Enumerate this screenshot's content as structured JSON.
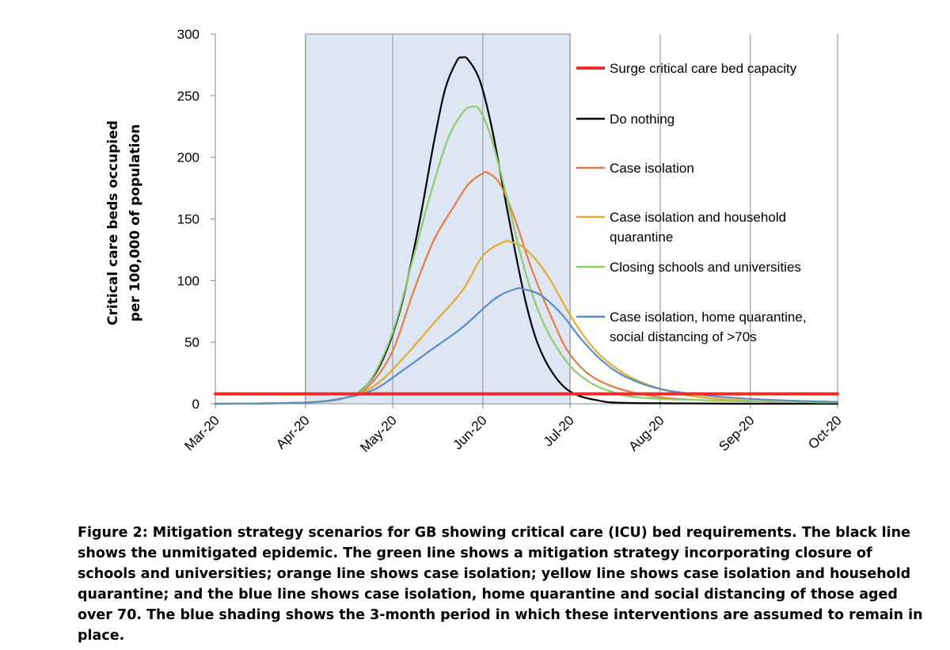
{
  "chart_data": {
    "type": "line",
    "ylabel": [
      "Critical care beds occupied",
      "per 100,000 of population"
    ],
    "ylim": [
      0,
      300
    ],
    "yticks": [
      0,
      50,
      100,
      150,
      200,
      250,
      300
    ],
    "xlim": [
      "2020-03-01",
      "2020-10-01"
    ],
    "xticks": [
      {
        "label": "Mar-20",
        "date": "2020-03-01"
      },
      {
        "label": "Apr-20",
        "date": "2020-04-01"
      },
      {
        "label": "May-20",
        "date": "2020-05-01"
      },
      {
        "label": "Jun-20",
        "date": "2020-06-01"
      },
      {
        "label": "Jul-20",
        "date": "2020-07-01"
      },
      {
        "label": "Aug-20",
        "date": "2020-08-01"
      },
      {
        "label": "Sep-20",
        "date": "2020-09-01"
      },
      {
        "label": "Oct-20",
        "date": "2020-10-01"
      }
    ],
    "grid": "vertical",
    "shaded_period": {
      "start": "2020-04-01",
      "end": "2020-07-01",
      "color": "#dfe6f3"
    },
    "legend_position": "right",
    "series": [
      {
        "name": "Surge critical care bed capacity",
        "color": "#e8302a",
        "width": 4,
        "points": [
          [
            "2020-03-01",
            8
          ],
          [
            "2020-10-01",
            8
          ]
        ]
      },
      {
        "name": "Do nothing",
        "color": "#000000",
        "width": 2.2,
        "points": [
          [
            "2020-03-01",
            0
          ],
          [
            "2020-04-01",
            1
          ],
          [
            "2020-04-15",
            5
          ],
          [
            "2020-04-22",
            15
          ],
          [
            "2020-04-28",
            38
          ],
          [
            "2020-05-04",
            80
          ],
          [
            "2020-05-10",
            145
          ],
          [
            "2020-05-15",
            210
          ],
          [
            "2020-05-19",
            255
          ],
          [
            "2020-05-23",
            278
          ],
          [
            "2020-05-25",
            281
          ],
          [
            "2020-05-27",
            279
          ],
          [
            "2020-05-31",
            262
          ],
          [
            "2020-06-04",
            225
          ],
          [
            "2020-06-08",
            175
          ],
          [
            "2020-06-12",
            125
          ],
          [
            "2020-06-16",
            80
          ],
          [
            "2020-06-20",
            48
          ],
          [
            "2020-06-25",
            25
          ],
          [
            "2020-07-01",
            10
          ],
          [
            "2020-07-10",
            3
          ],
          [
            "2020-07-25",
            0.5
          ],
          [
            "2020-10-01",
            0
          ]
        ]
      },
      {
        "name": "Case isolation",
        "color": "#e07f45",
        "width": 2.2,
        "points": [
          [
            "2020-03-01",
            0
          ],
          [
            "2020-04-01",
            1
          ],
          [
            "2020-04-15",
            5
          ],
          [
            "2020-04-23",
            15
          ],
          [
            "2020-05-01",
            43
          ],
          [
            "2020-05-08",
            90
          ],
          [
            "2020-05-15",
            132
          ],
          [
            "2020-05-22",
            160
          ],
          [
            "2020-05-27",
            178
          ],
          [
            "2020-06-01",
            187
          ],
          [
            "2020-06-03",
            187
          ],
          [
            "2020-06-07",
            178
          ],
          [
            "2020-06-12",
            150
          ],
          [
            "2020-06-18",
            108
          ],
          [
            "2020-06-25",
            68
          ],
          [
            "2020-07-01",
            40
          ],
          [
            "2020-07-10",
            20
          ],
          [
            "2020-07-25",
            8
          ],
          [
            "2020-08-15",
            3
          ],
          [
            "2020-10-01",
            1
          ]
        ]
      },
      {
        "name": "Case isolation and household quarantine",
        "color": "#e2aa2f",
        "width": 2.2,
        "points": [
          [
            "2020-03-01",
            0
          ],
          [
            "2020-04-01",
            1
          ],
          [
            "2020-04-15",
            5
          ],
          [
            "2020-04-25",
            15
          ],
          [
            "2020-05-05",
            38
          ],
          [
            "2020-05-15",
            65
          ],
          [
            "2020-05-25",
            92
          ],
          [
            "2020-06-01",
            120
          ],
          [
            "2020-06-08",
            131
          ],
          [
            "2020-06-11",
            131
          ],
          [
            "2020-06-16",
            125
          ],
          [
            "2020-06-23",
            105
          ],
          [
            "2020-07-01",
            72
          ],
          [
            "2020-07-08",
            48
          ],
          [
            "2020-07-15",
            32
          ],
          [
            "2020-07-25",
            18
          ],
          [
            "2020-08-10",
            7
          ],
          [
            "2020-09-01",
            2.5
          ],
          [
            "2020-10-01",
            1
          ]
        ]
      },
      {
        "name": "Closing schools and universities",
        "color": "#8fcb6b",
        "width": 2.2,
        "points": [
          [
            "2020-03-01",
            0
          ],
          [
            "2020-04-01",
            1
          ],
          [
            "2020-04-15",
            5
          ],
          [
            "2020-04-23",
            18
          ],
          [
            "2020-05-01",
            58
          ],
          [
            "2020-05-08",
            118
          ],
          [
            "2020-05-14",
            170
          ],
          [
            "2020-05-20",
            215
          ],
          [
            "2020-05-25",
            236
          ],
          [
            "2020-05-28",
            241
          ],
          [
            "2020-05-31",
            238
          ],
          [
            "2020-06-04",
            215
          ],
          [
            "2020-06-09",
            170
          ],
          [
            "2020-06-15",
            112
          ],
          [
            "2020-06-21",
            70
          ],
          [
            "2020-06-28",
            40
          ],
          [
            "2020-07-05",
            22
          ],
          [
            "2020-07-15",
            10
          ],
          [
            "2020-08-01",
            4
          ],
          [
            "2020-10-01",
            1
          ]
        ]
      },
      {
        "name": "Case isolation, home quarantine, social distancing of >70s",
        "color": "#5b8cc5",
        "width": 2.2,
        "points": [
          [
            "2020-03-01",
            0
          ],
          [
            "2020-04-01",
            1
          ],
          [
            "2020-04-15",
            5
          ],
          [
            "2020-04-25",
            12
          ],
          [
            "2020-05-05",
            28
          ],
          [
            "2020-05-15",
            45
          ],
          [
            "2020-05-25",
            62
          ],
          [
            "2020-06-05",
            85
          ],
          [
            "2020-06-12",
            93
          ],
          [
            "2020-06-15",
            93
          ],
          [
            "2020-06-21",
            88
          ],
          [
            "2020-06-28",
            73
          ],
          [
            "2020-07-05",
            52
          ],
          [
            "2020-07-12",
            35
          ],
          [
            "2020-07-20",
            22
          ],
          [
            "2020-08-01",
            12
          ],
          [
            "2020-08-20",
            6
          ],
          [
            "2020-09-10",
            3
          ],
          [
            "2020-10-01",
            1.5
          ]
        ]
      }
    ],
    "legend_entries": [
      {
        "lines": [
          "Surge critical care bed capacity"
        ],
        "color": "#e8302a",
        "width": 4
      },
      {
        "lines": [
          "Do nothing"
        ],
        "color": "#000000",
        "width": 2.5
      },
      {
        "lines": [
          "Case isolation"
        ],
        "color": "#e07f45",
        "width": 2.5
      },
      {
        "lines": [
          "Case isolation and household",
          "quarantine"
        ],
        "color": "#e2aa2f",
        "width": 2.5
      },
      {
        "lines": [
          "Closing schools and universities"
        ],
        "color": "#8fcb6b",
        "width": 2.5
      },
      {
        "lines": [
          "Case isolation, home quarantine,",
          "social distancing of >70s"
        ],
        "color": "#5b8cc5",
        "width": 2.5
      }
    ]
  },
  "caption": "Figure 2: Mitigation strategy scenarios for GB showing critical care (ICU) bed requirements. The black line shows the unmitigated epidemic. The green line shows a mitigation strategy incorporating closure of schools and universities; orange line shows case isolation; yellow line shows case isolation and household quarantine; and the blue line shows case isolation, home quarantine and social distancing of those aged over 70. The blue shading shows the 3-month period in which these interventions are assumed to remain in place."
}
